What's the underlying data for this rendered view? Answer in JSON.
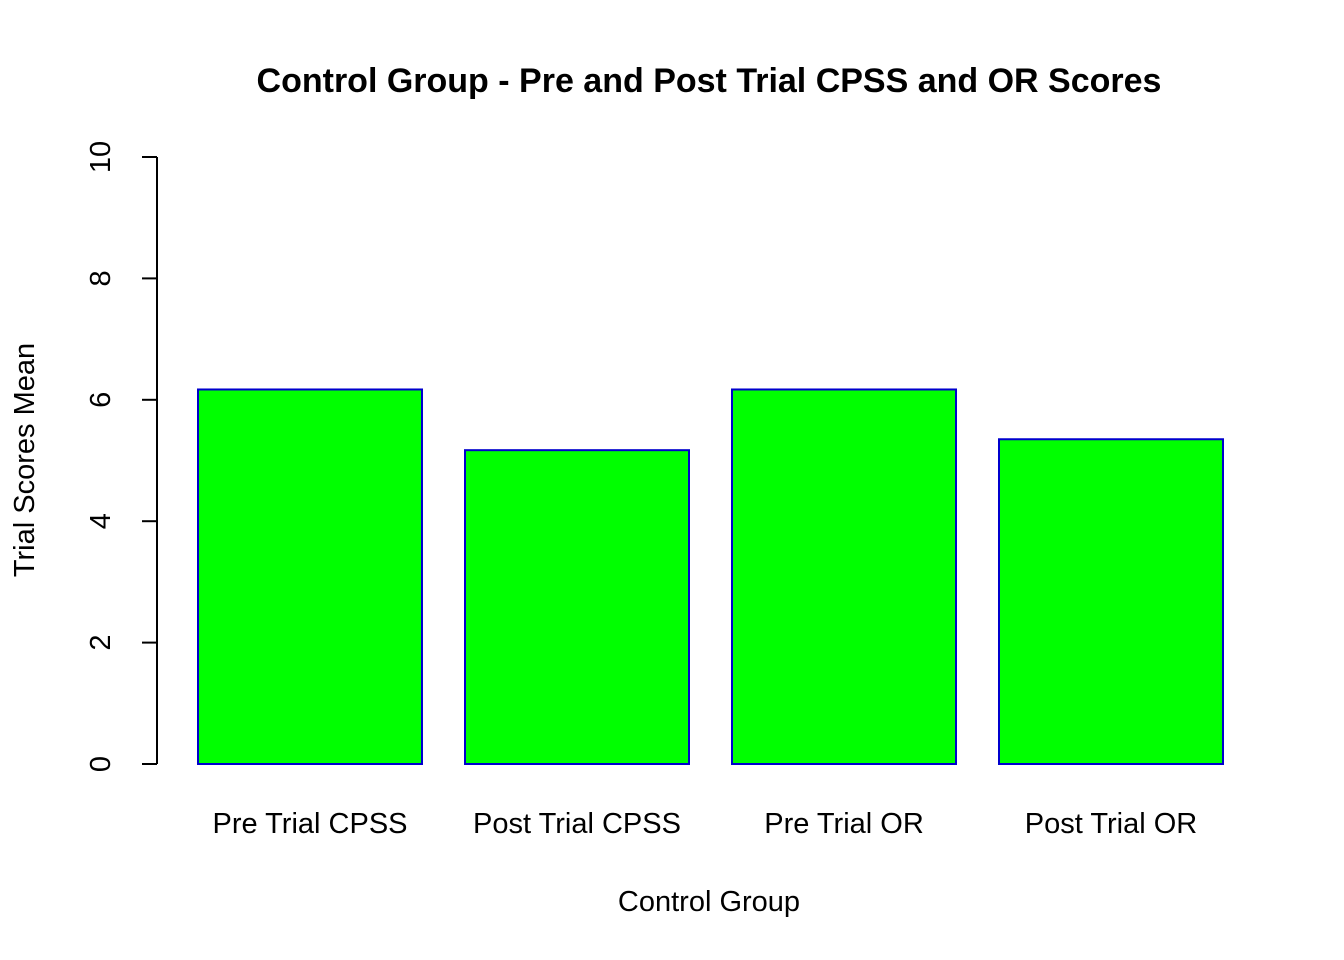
{
  "chart_data": {
    "type": "bar",
    "title": "Control Group - Pre and Post Trial CPSS and OR Scores",
    "xlabel": "Control Group",
    "ylabel": "Trial Scores Mean",
    "categories": [
      "Pre Trial CPSS",
      "Post Trial CPSS",
      "Pre Trial OR",
      "Post Trial OR"
    ],
    "values": [
      6.17,
      5.17,
      6.17,
      5.35
    ],
    "ylim": [
      0,
      10
    ],
    "yticks": [
      "0",
      "2",
      "4",
      "6",
      "8",
      "10"
    ],
    "grid": false,
    "legend": "none",
    "colors": {
      "bar_fill": "#00ff00",
      "bar_border": "#0000cd"
    }
  }
}
